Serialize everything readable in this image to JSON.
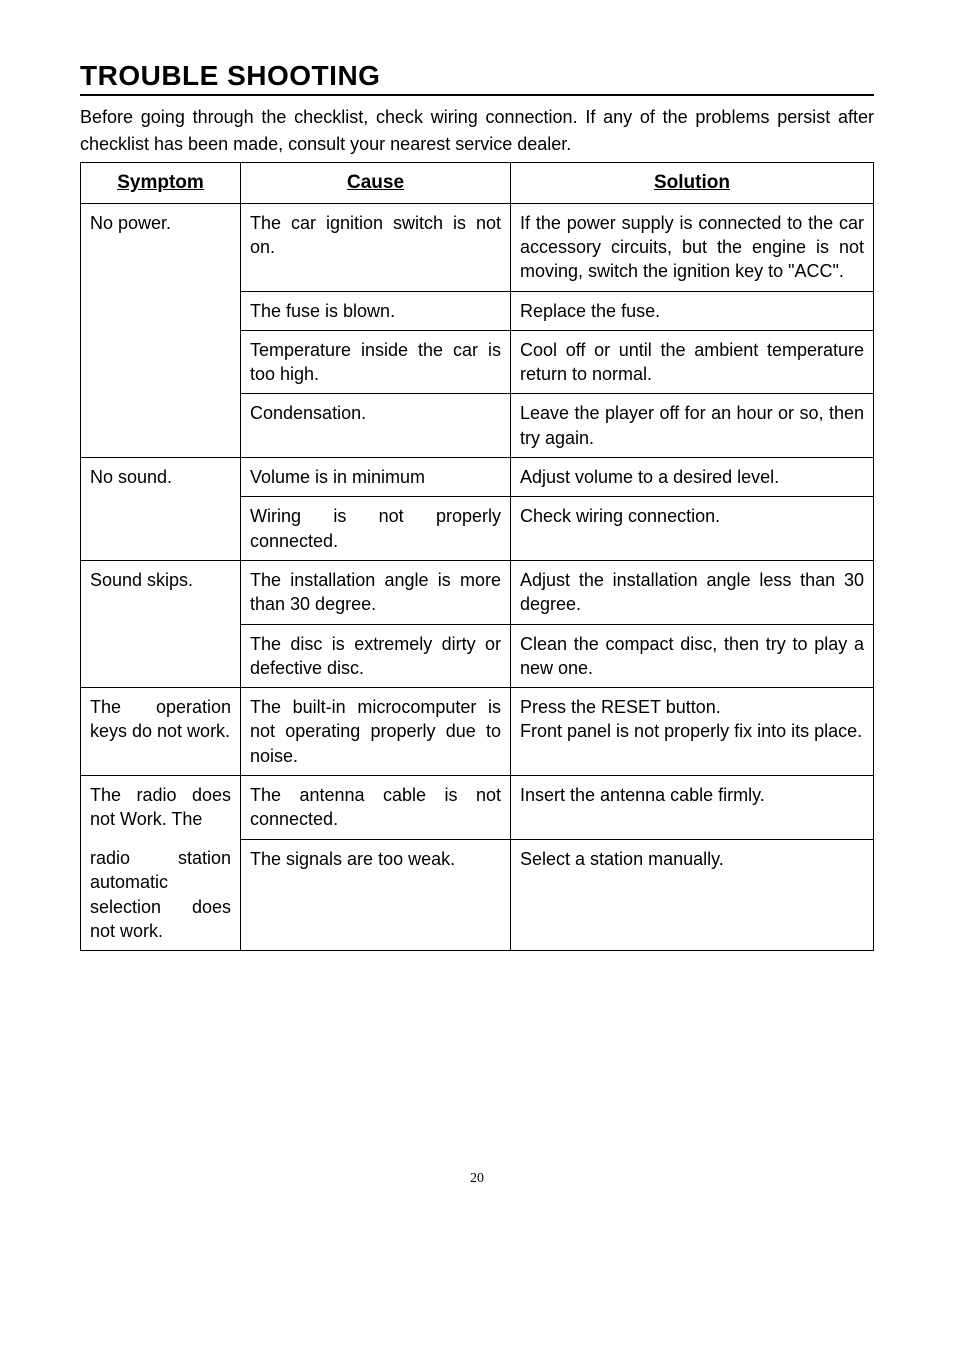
{
  "title": "TROUBLE SHOOTING",
  "intro": "Before going through the checklist, check wiring connection. If any of the problems persist after checklist has been made, consult your nearest service dealer.",
  "headers": {
    "c1": "Symptom",
    "c2": "Cause",
    "c3": "Solution"
  },
  "rows": {
    "r1": {
      "symptom": "No power.",
      "cause": "The car ignition switch is not on.",
      "solution": "If the power supply is connected to the car accessory circuits, but the engine is not moving, switch the ignition key to \"ACC\"."
    },
    "r2": {
      "cause": "The fuse is blown.",
      "solution": "Replace the fuse."
    },
    "r3": {
      "cause": "Temperature inside the car is too high.",
      "solution": "Cool off or until the ambient temperature return to normal."
    },
    "r4": {
      "cause": "Condensation.",
      "solution": "Leave the player off for an hour or so, then try again."
    },
    "r5": {
      "symptom": "No sound.",
      "cause": "Volume is in minimum",
      "solution": "Adjust volume to a desired level."
    },
    "r6": {
      "cause": "Wiring is not properly connected.",
      "solution": "Check wiring connection."
    },
    "r7": {
      "symptom": "Sound skips.",
      "cause": "The installation angle is more than 30 degree.",
      "solution": "Adjust the installation angle less than 30 degree."
    },
    "r8": {
      "cause": "The disc is extremely dirty or defective disc.",
      "solution": "Clean the compact disc, then try to play a new one."
    },
    "r9": {
      "symptom": "The operation keys do not work.",
      "cause": "The built-in microcomputer is not operating properly due to noise.",
      "solution": "Press the RESET button.\nFront panel is not properly fix into its place."
    },
    "r10": {
      "symptom_a": "The radio does not Work. The",
      "symptom_b": "radio station automatic selection does not work.",
      "cause": "The antenna cable is not connected.",
      "solution": "Insert the antenna cable firmly."
    },
    "r11": {
      "cause": "The signals are too weak.",
      "solution": "Select a station manually."
    }
  },
  "page": "20"
}
